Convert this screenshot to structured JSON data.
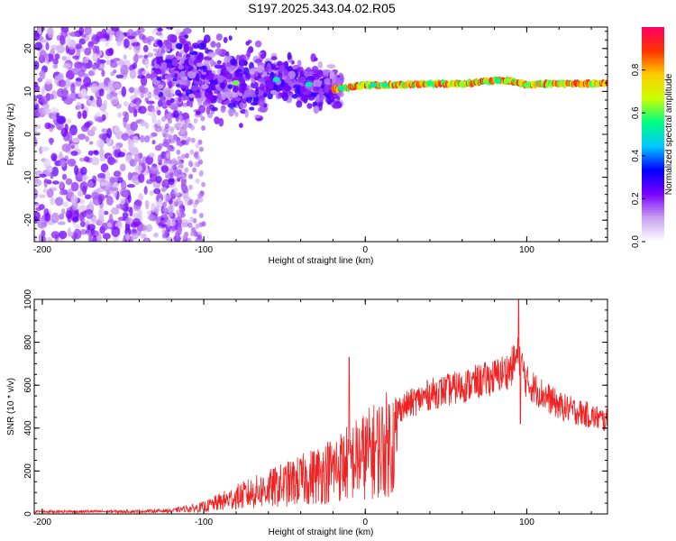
{
  "title": "S197.2025.343.04.02.R05",
  "chart_data": [
    {
      "type": "heatmap",
      "xlabel": "Height of straight line (km)",
      "ylabel": "Frequency (Hz)",
      "xlim": [
        -205,
        150
      ],
      "ylim": [
        -25,
        25
      ],
      "xticks": [
        -200,
        -100,
        0,
        100
      ],
      "yticks": [
        -20,
        -10,
        0,
        10,
        20
      ],
      "colorbar": {
        "label": "Normalized spectral amplitude",
        "range": [
          0.0,
          1.0
        ],
        "ticks": [
          0.0,
          0.2,
          0.4,
          0.6,
          0.8
        ],
        "tick_labels": [
          "0.0",
          "0.2",
          "0.4",
          "0.6",
          "0.8"
        ],
        "colors": [
          "#ffffff",
          "#c8a0f0",
          "#7a00ff",
          "#0000ff",
          "#00c8ff",
          "#00ff80",
          "#c8ff00",
          "#ffcc00",
          "#ff3300",
          "#ff0066"
        ]
      },
      "ridge": {
        "description": "narrowband signal near 11.5 Hz",
        "points": [
          [
            -120,
            15
          ],
          [
            -100,
            13
          ],
          [
            -80,
            12
          ],
          [
            -60,
            13
          ],
          [
            -40,
            12
          ],
          [
            -20,
            10.5
          ],
          [
            -10,
            11
          ],
          [
            0,
            11.5
          ],
          [
            20,
            11.5
          ],
          [
            40,
            11.8
          ],
          [
            60,
            11.8
          ],
          [
            80,
            12.5
          ],
          [
            90,
            12.5
          ],
          [
            100,
            11.5
          ],
          [
            110,
            11.8
          ],
          [
            150,
            11.8
          ]
        ]
      }
    },
    {
      "type": "line",
      "xlabel": "Height of straight line (km)",
      "ylabel": "SNR (10 * v/v)",
      "xlim": [
        -205,
        150
      ],
      "ylim": [
        0,
        1000
      ],
      "xticks": [
        -200,
        -100,
        0,
        100
      ],
      "yticks": [
        0,
        200,
        400,
        600,
        800,
        1000
      ],
      "color": "#ee2222",
      "envelope": {
        "x": [
          -205,
          -150,
          -120,
          -100,
          -80,
          -60,
          -40,
          -20,
          0,
          20,
          40,
          60,
          80,
          90,
          95,
          100,
          120,
          150
        ],
        "y": [
          15,
          15,
          20,
          50,
          120,
          180,
          240,
          320,
          420,
          540,
          620,
          660,
          710,
          750,
          830,
          680,
          560,
          480
        ]
      },
      "spikes": [
        {
          "x": -10,
          "y": 730
        },
        {
          "x": 95,
          "y": 1000
        },
        {
          "x": 96,
          "y": 420
        }
      ]
    }
  ]
}
